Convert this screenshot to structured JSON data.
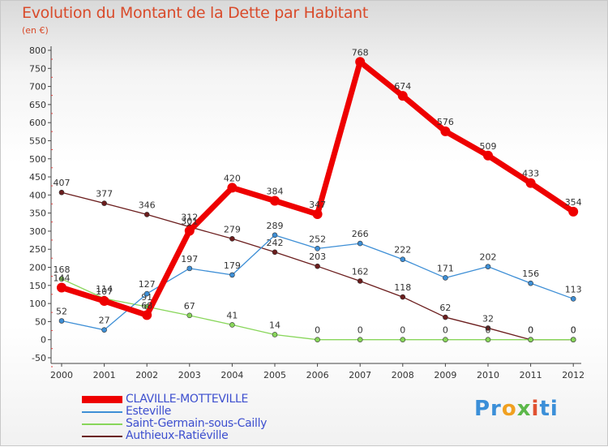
{
  "title": "Evolution du Montant de la Dette par Habitant",
  "subtitle": "(en €)",
  "logo": [
    "Pr",
    "o",
    "x",
    "i",
    "ti"
  ],
  "chart_data": {
    "type": "line",
    "title": "Evolution du Montant de la Dette par Habitant",
    "ylabel": "(en €)",
    "xlabel": "",
    "ylim": [
      -50,
      800
    ],
    "yticks": [
      -50,
      0,
      50,
      100,
      150,
      200,
      250,
      300,
      350,
      400,
      450,
      500,
      550,
      600,
      650,
      700,
      750,
      800
    ],
    "grid": false,
    "legend_position": "bottom-left",
    "categories": [
      "2000",
      "2001",
      "2002",
      "2003",
      "2004",
      "2005",
      "2006",
      "2007",
      "2008",
      "2009",
      "2010",
      "2011",
      "2012"
    ],
    "series": [
      {
        "name": "Authieux-Ratiéville",
        "color": "#6b1d1d",
        "values": [
          407,
          377,
          346,
          312,
          279,
          242,
          203,
          162,
          118,
          62,
          32,
          0,
          0
        ],
        "labels": [
          "407",
          "377",
          "346",
          "312",
          "279",
          "242",
          "203",
          "162",
          "118",
          "62",
          "32",
          "0",
          "0"
        ]
      },
      {
        "name": "Saint-Germain-sous-Cailly",
        "color": "#88d65a",
        "values": [
          168,
          114,
          91,
          67,
          41,
          14,
          0,
          0,
          0,
          0,
          0,
          0,
          0
        ],
        "labels": [
          "168",
          "114",
          "91",
          "67",
          "41",
          "14",
          "0",
          "0",
          "0",
          "0",
          "0",
          "0",
          "0"
        ]
      },
      {
        "name": "Esteville",
        "color": "#3e8fd6",
        "values": [
          52,
          27,
          127,
          197,
          179,
          289,
          252,
          266,
          222,
          171,
          202,
          156,
          113
        ],
        "labels": [
          "52",
          "27",
          "127",
          "197",
          "179",
          "289",
          "252",
          "266",
          "222",
          "171",
          "202",
          "156",
          "113"
        ]
      },
      {
        "name": "CLAVILLE-MOTTEVILLE",
        "color": "#ee0000",
        "values": [
          144,
          107,
          68,
          301,
          420,
          384,
          347,
          768,
          674,
          576,
          509,
          433,
          354
        ],
        "labels": [
          "144",
          "107",
          "68",
          "301",
          "420",
          "384",
          "347",
          "768",
          "674",
          "576",
          "509",
          "433",
          "354"
        ]
      }
    ],
    "legend": [
      {
        "name": "CLAVILLE-MOTTEVILLE",
        "color": "#ee0000"
      },
      {
        "name": "Esteville",
        "color": "#3e8fd6"
      },
      {
        "name": "Saint-Germain-sous-Cailly",
        "color": "#88d65a"
      },
      {
        "name": "Authieux-Ratiéville",
        "color": "#6b1d1d"
      }
    ]
  }
}
